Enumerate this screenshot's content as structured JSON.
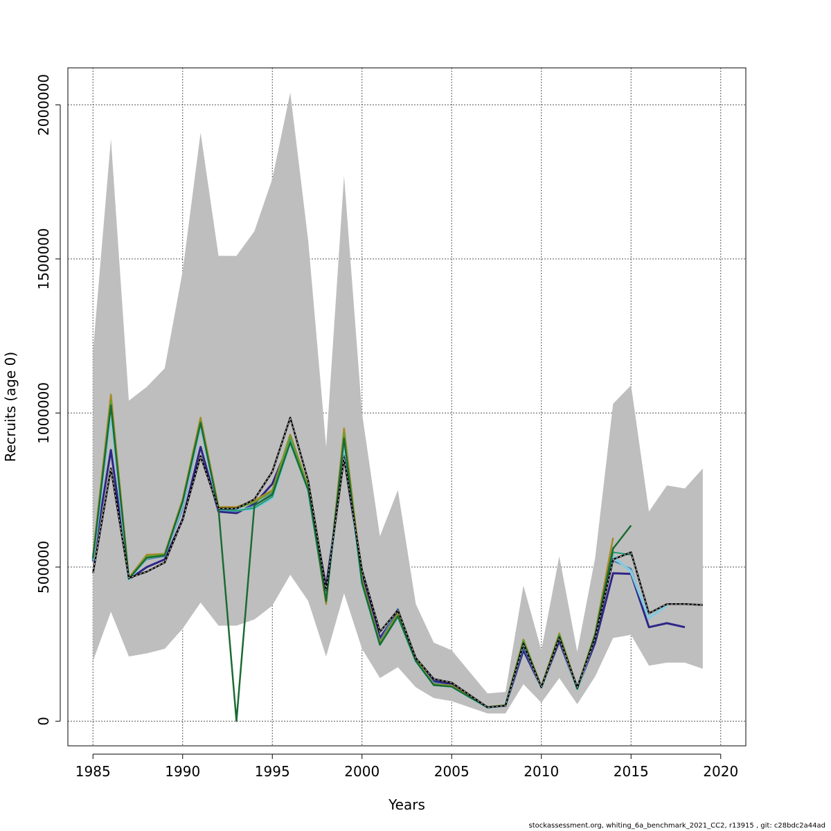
{
  "chart_data": {
    "type": "line",
    "xlabel": "Years",
    "ylabel": "Recruits (age 0)",
    "xlim": [
      1983.6,
      2021.4
    ],
    "ylim": [
      -80000,
      2120000
    ],
    "x_ticks": [
      1985,
      1990,
      1995,
      2000,
      2005,
      2010,
      2015,
      2020
    ],
    "y_ticks": [
      0,
      500000,
      1000000,
      1500000,
      2000000
    ],
    "grid": true,
    "grid_style": "dotted",
    "legend": "none",
    "confidence_band": {
      "color": "#bebebe",
      "x": [
        1985,
        1986,
        1987,
        1988,
        1989,
        1990,
        1991,
        1992,
        1993,
        1994,
        1995,
        1996,
        1997,
        1998,
        1999,
        2000,
        2001,
        2002,
        2003,
        2004,
        2005,
        2006,
        2007,
        2008,
        2009,
        2010,
        2011,
        2012,
        2013,
        2014,
        2015,
        2016,
        2017,
        2018,
        2019
      ],
      "upper": [
        1200000,
        1890000,
        1040000,
        1085000,
        1145000,
        1460000,
        1910000,
        1510000,
        1510000,
        1590000,
        1760000,
        2040000,
        1560000,
        890000,
        1770000,
        1000000,
        600000,
        750000,
        380000,
        255000,
        230000,
        160000,
        90000,
        95000,
        440000,
        230000,
        535000,
        225000,
        530000,
        1030000,
        1090000,
        680000,
        765000,
        755000,
        820000
      ],
      "lower": [
        195000,
        355000,
        210000,
        220000,
        235000,
        300000,
        385000,
        310000,
        310000,
        330000,
        375000,
        475000,
        390000,
        210000,
        415000,
        235000,
        140000,
        175000,
        110000,
        75000,
        65000,
        45000,
        25000,
        25000,
        120000,
        60000,
        140000,
        55000,
        145000,
        270000,
        280000,
        180000,
        190000,
        190000,
        170000
      ]
    },
    "series": [
      {
        "color": "#2e2586",
        "width": 3,
        "dash": "",
        "x": [
          1985,
          1986,
          1987,
          1988,
          1989,
          1990,
          1991,
          1992,
          1993,
          1994,
          1995,
          1996,
          1997,
          1998,
          1999,
          2000,
          2001,
          2002,
          2003,
          2004,
          2005,
          2006,
          2007,
          2008,
          2009,
          2010,
          2011,
          2012,
          2013,
          2014,
          2015,
          2016,
          2017,
          2018
        ],
        "values": [
          520000,
          880000,
          460000,
          500000,
          525000,
          655000,
          890000,
          680000,
          675000,
          705000,
          770000,
          910000,
          755000,
          435000,
          860000,
          475000,
          270000,
          355000,
          200000,
          130000,
          120000,
          80000,
          45000,
          50000,
          230000,
          110000,
          260000,
          105000,
          255000,
          480000,
          478000,
          305000,
          318000,
          305000
        ]
      },
      {
        "color": "#4a84b4",
        "width": 2,
        "dash": "",
        "x": [
          1985,
          1986,
          1987,
          1988,
          1989,
          1990,
          1991,
          1992,
          1993,
          1994,
          1995,
          1996,
          1997,
          1998,
          1999,
          2000,
          2001,
          2002,
          2003,
          2004,
          2005,
          2006,
          2007,
          2008,
          2009,
          2010,
          2011,
          2012,
          2013,
          2014,
          2015,
          2016
        ],
        "values": [
          515000,
          1010000,
          460000,
          525000,
          535000,
          690000,
          950000,
          685000,
          680000,
          700000,
          740000,
          915000,
          755000,
          410000,
          900000,
          460000,
          260000,
          365000,
          200000,
          125000,
          115000,
          80000,
          45000,
          50000,
          240000,
          110000,
          270000,
          105000,
          270000,
          520000,
          495000,
          330000
        ]
      },
      {
        "color": "#86c9dc",
        "width": 4,
        "dash": "",
        "x": [
          1985,
          1986,
          1987,
          1988,
          1989,
          1990,
          1991,
          1992,
          1993,
          1994,
          1995,
          1996,
          1997,
          1998,
          1999,
          2000,
          2001,
          2002,
          2003,
          2004,
          2005,
          2006,
          2007,
          2008,
          2009,
          2010,
          2011,
          2012,
          2013,
          2014,
          2015,
          2016,
          2017
        ],
        "values": [
          525000,
          1000000,
          460000,
          530000,
          540000,
          705000,
          960000,
          690000,
          685000,
          690000,
          725000,
          905000,
          750000,
          395000,
          910000,
          450000,
          250000,
          340000,
          195000,
          118000,
          113000,
          78000,
          45000,
          51000,
          255000,
          110000,
          275000,
          105000,
          275000,
          535000,
          485000,
          335000,
          375000
        ]
      },
      {
        "color": "#1e9c73",
        "width": 2,
        "dash": "",
        "x": [
          1985,
          1986,
          1987,
          1988,
          1989,
          1990,
          1991,
          1992,
          1993,
          1994,
          1995,
          1996,
          1997,
          1998,
          1999,
          2000,
          2001,
          2002,
          2003,
          2004,
          2005,
          2006,
          2007,
          2008,
          2009,
          2010,
          2011,
          2012,
          2013,
          2014,
          2015
        ],
        "values": [
          527000,
          1020000,
          462000,
          532000,
          540000,
          710000,
          965000,
          688000,
          683000,
          692000,
          728000,
          908000,
          752000,
          398000,
          915000,
          452000,
          248000,
          342000,
          195000,
          118000,
          113000,
          78000,
          45000,
          51000,
          258000,
          110000,
          278000,
          105000,
          278000,
          548000,
          540000
        ]
      },
      {
        "color": "#a78a24",
        "width": 2.5,
        "dash": "",
        "x": [
          1985,
          1986,
          1987,
          1988,
          1989,
          1990,
          1991,
          1992,
          1993,
          1994,
          1995,
          1996,
          1997,
          1998,
          1999,
          2000,
          2001,
          2002,
          2003,
          2004,
          2005,
          2006,
          2007,
          2008,
          2009,
          2010,
          2011,
          2012,
          2013,
          2014
        ],
        "values": [
          535000,
          1060000,
          465000,
          540000,
          543000,
          720000,
          985000,
          695000,
          695000,
          715000,
          750000,
          930000,
          760000,
          380000,
          950000,
          460000,
          255000,
          350000,
          200000,
          120000,
          116000,
          80000,
          46000,
          52000,
          265000,
          112000,
          285000,
          108000,
          285000,
          595000
        ]
      },
      {
        "color": "#5ca330",
        "width": 2,
        "dash": "",
        "x": [
          1985,
          1986,
          1987,
          1988,
          1989,
          1990,
          1991,
          1992,
          1993,
          1994,
          1995,
          1996,
          1997,
          1998,
          1999,
          2000,
          2001,
          2002,
          2003,
          2004,
          2005,
          2006,
          2007,
          2008,
          2009,
          2010,
          2011,
          2012,
          2013,
          2014
        ],
        "values": [
          530000,
          1040000,
          463000,
          535000,
          541000,
          715000,
          975000,
          690000,
          690000,
          710000,
          745000,
          925000,
          758000,
          385000,
          935000,
          455000,
          252000,
          345000,
          198000,
          119000,
          114000,
          79000,
          45000,
          51000,
          262000,
          111000,
          282000,
          106000,
          282000,
          565000
        ]
      },
      {
        "color": "#1a6b32",
        "width": 2.5,
        "dash": "",
        "x": [
          1985,
          1986,
          1987,
          1988,
          1989,
          1990,
          1991,
          1992,
          1993,
          1994,
          1995,
          1996,
          1997,
          1998,
          1999,
          2000,
          2001,
          2002,
          2003,
          2004,
          2005,
          2006,
          2007,
          2008,
          2009,
          2010,
          2011,
          2012,
          2013,
          2014,
          2015
        ],
        "values": [
          528000,
          1025000,
          462000,
          530000,
          538000,
          712000,
          968000,
          688000,
          685,
          700000,
          735000,
          905000,
          750000,
          390000,
          918000,
          448000,
          248000,
          340000,
          195000,
          117000,
          112000,
          78000,
          45000,
          51000,
          255000,
          110000,
          275000,
          105000,
          280000,
          560000,
          635000
        ]
      },
      {
        "color": "#000000",
        "width": 2.5,
        "dash": "",
        "x": [
          1985,
          1986,
          1987,
          1988,
          1989,
          1990,
          1991,
          1992,
          1993,
          1994,
          1995,
          1996,
          1997,
          1998,
          1999,
          2000,
          2001,
          2002,
          2003,
          2004,
          2005,
          2006,
          2007,
          2008,
          2009,
          2010,
          2011,
          2012,
          2013,
          2014,
          2015,
          2016,
          2017,
          2018,
          2019
        ],
        "values": [
          480000,
          820000,
          465000,
          485000,
          515000,
          655000,
          860000,
          690000,
          690000,
          720000,
          810000,
          985000,
          780000,
          425000,
          855000,
          490000,
          290000,
          360000,
          205000,
          137000,
          125000,
          85000,
          45000,
          50000,
          250000,
          110000,
          270000,
          110000,
          270000,
          525000,
          548000,
          350000,
          380000,
          380000,
          377000
        ]
      },
      {
        "color": "#d9d9d9",
        "width": 1,
        "dash": "3,3",
        "x": [
          1985,
          1986,
          1987,
          1988,
          1989,
          1990,
          1991,
          1992,
          1993,
          1994,
          1995,
          1996,
          1997,
          1998,
          1999,
          2000,
          2001,
          2002,
          2003,
          2004,
          2005,
          2006,
          2007,
          2008,
          2009,
          2010,
          2011,
          2012,
          2013,
          2014,
          2015,
          2016,
          2017,
          2018,
          2019
        ],
        "values": [
          480000,
          820000,
          465000,
          485000,
          515000,
          655000,
          860000,
          690000,
          690000,
          720000,
          810000,
          985000,
          780000,
          425000,
          855000,
          490000,
          290000,
          360000,
          205000,
          137000,
          125000,
          85000,
          45000,
          50000,
          250000,
          110000,
          270000,
          110000,
          270000,
          525000,
          548000,
          350000,
          380000,
          380000,
          377000
        ]
      }
    ]
  },
  "footer": {
    "text": "stockassessment.org, whiting_6a_benchmark_2021_CC2, r13915 , git: c28bdc2a44ad"
  }
}
